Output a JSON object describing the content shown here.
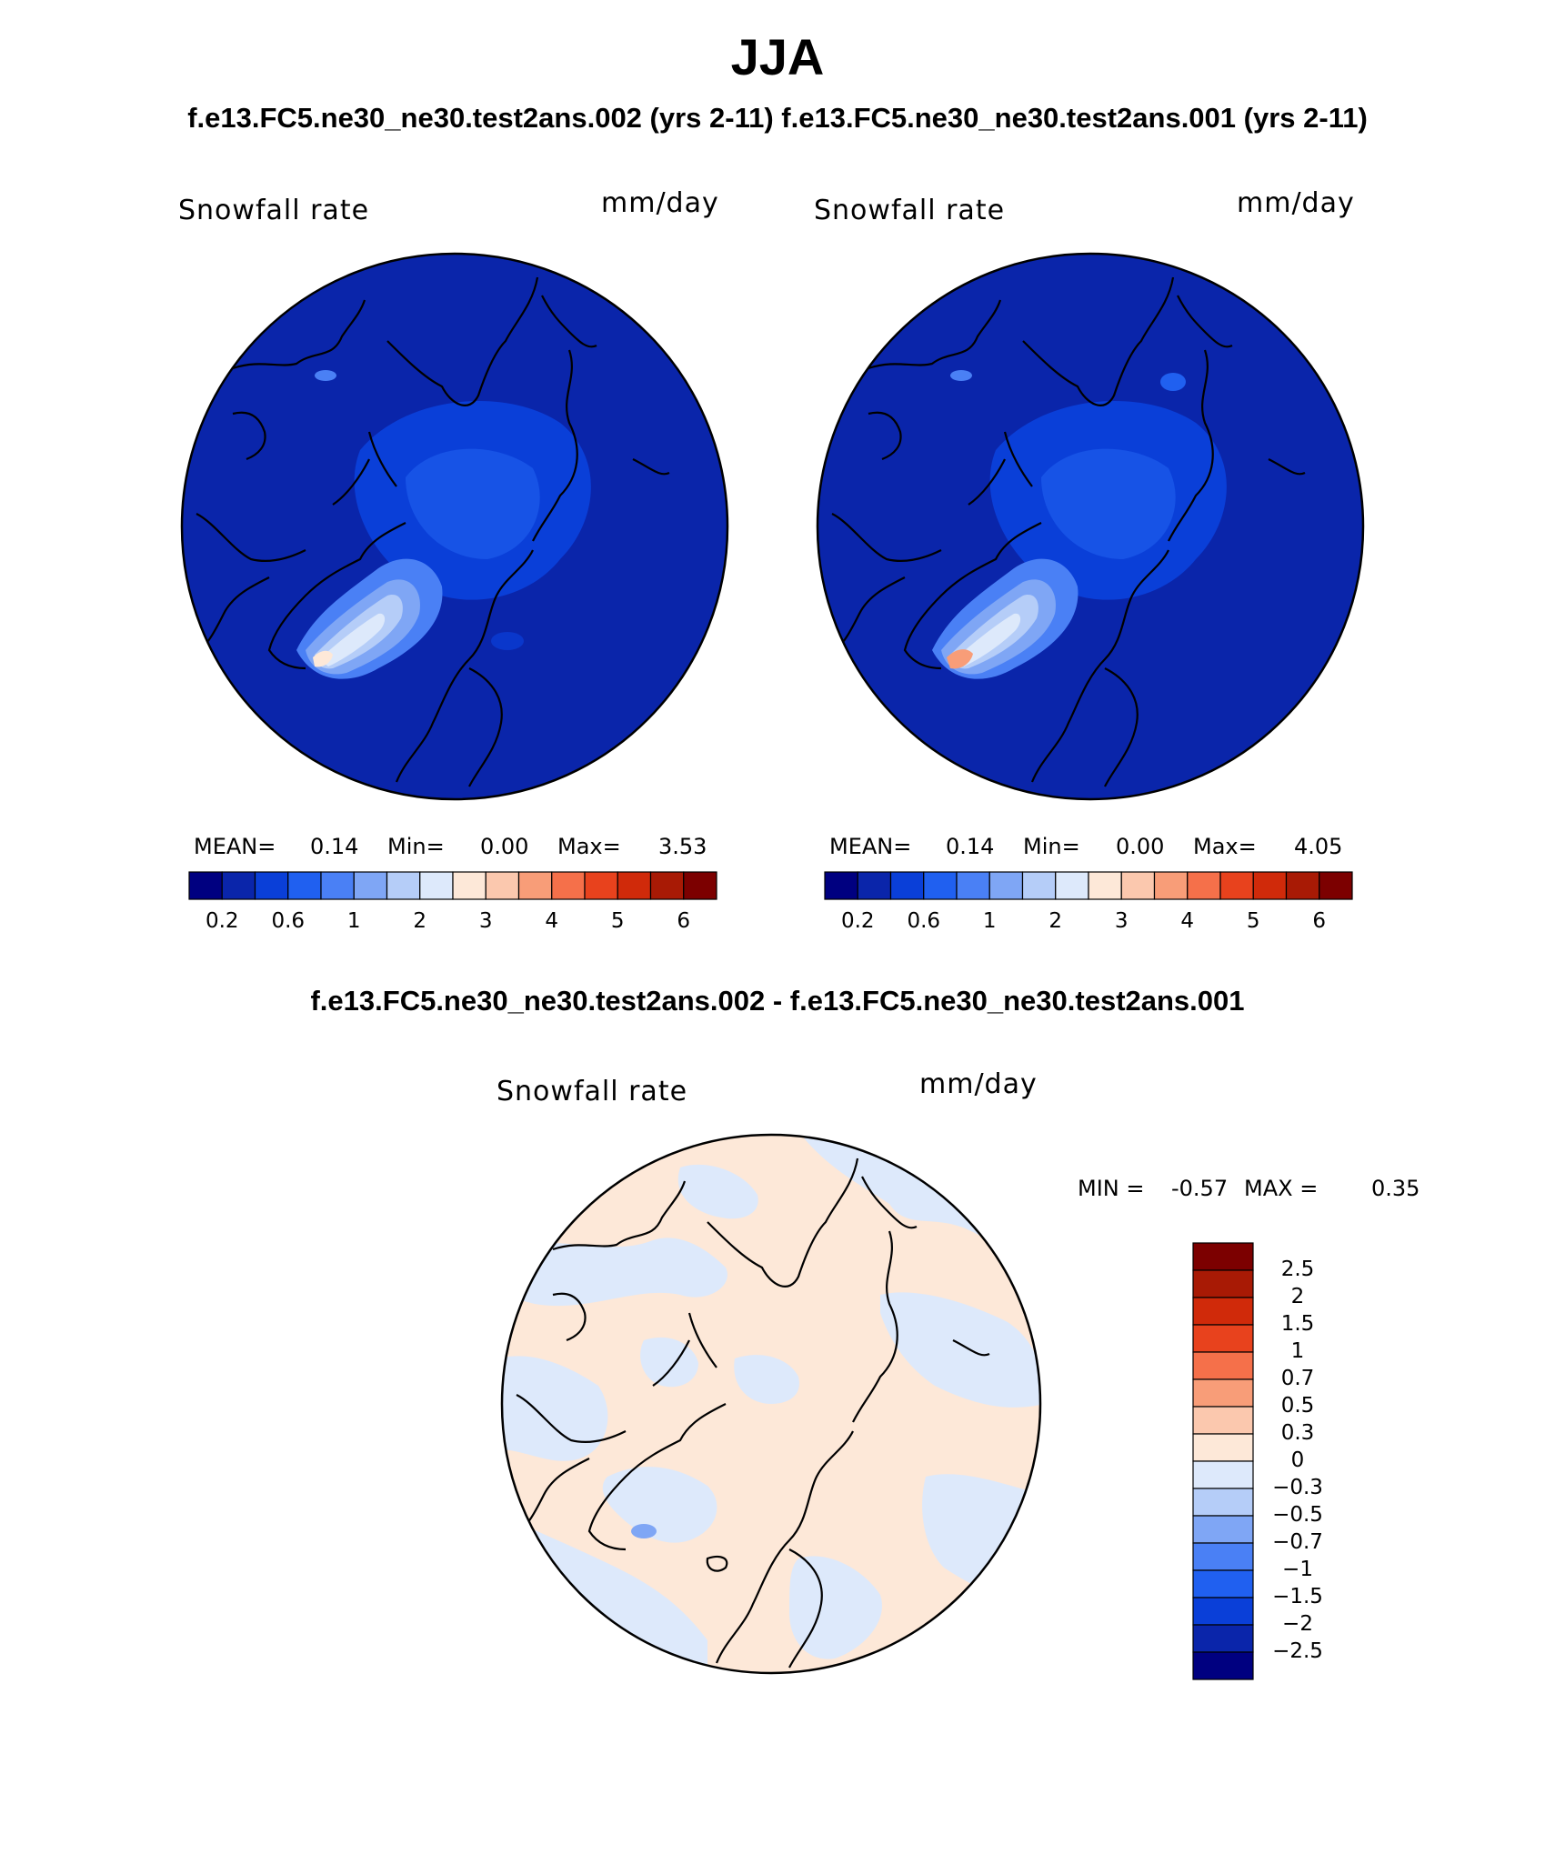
{
  "title": "JJA",
  "subtitle_top": "f.e13.FC5.ne30_ne30.test2ans.002 (yrs 2-11)  f.e13.FC5.ne30_ne30.test2ans.001 (yrs 2-11)",
  "subtitle_diff": "f.e13.FC5.ne30_ne30.test2ans.002 - f.e13.FC5.ne30_ne30.test2ans.001",
  "panels": [
    {
      "variable": "Snowfall rate",
      "units": "mm/day",
      "stats": {
        "mean_label": "MEAN=",
        "mean": "0.14",
        "min_label": "Min=",
        "min": "0.00",
        "max_label": "Max=",
        "max": "3.53"
      }
    },
    {
      "variable": "Snowfall rate",
      "units": "mm/day",
      "stats": {
        "mean_label": "MEAN=",
        "mean": "0.14",
        "min_label": "Min=",
        "min": "0.00",
        "max_label": "Max=",
        "max": "4.05"
      }
    }
  ],
  "diff_panel": {
    "variable": "Snowfall rate",
    "units": "mm/day",
    "min_label": "MIN =",
    "min": "-0.57",
    "max_label": "MAX =",
    "max": "0.35"
  },
  "colorbar_main": {
    "colors": [
      "#000080",
      "#0a25aa",
      "#0a3fd8",
      "#2060f0",
      "#4a80f5",
      "#7fa6f5",
      "#b5cdf8",
      "#dde9fb",
      "#fde8d8",
      "#fbc8ae",
      "#f89d78",
      "#f5704a",
      "#e8421d",
      "#d02a0a",
      "#a81a05",
      "#7c0000"
    ],
    "tick_labels": [
      "0.2",
      "0.6",
      "1",
      "2",
      "3",
      "4",
      "5",
      "6"
    ]
  },
  "colorbar_diff": {
    "colors": [
      "#7c0000",
      "#a81a05",
      "#d02a0a",
      "#e8421d",
      "#f5704a",
      "#f89d78",
      "#fbc8ae",
      "#fde8d8",
      "#dde9fb",
      "#b5cdf8",
      "#7fa6f5",
      "#4a80f5",
      "#2060f0",
      "#0a3fd8",
      "#0a25aa",
      "#000080"
    ],
    "tick_labels": [
      "2.5",
      "2",
      "1.5",
      "1",
      "0.7",
      "0.5",
      "0.3",
      "0",
      "−0.3",
      "−0.5",
      "−0.7",
      "−1",
      "−1.5",
      "−2",
      "−2.5"
    ]
  }
}
